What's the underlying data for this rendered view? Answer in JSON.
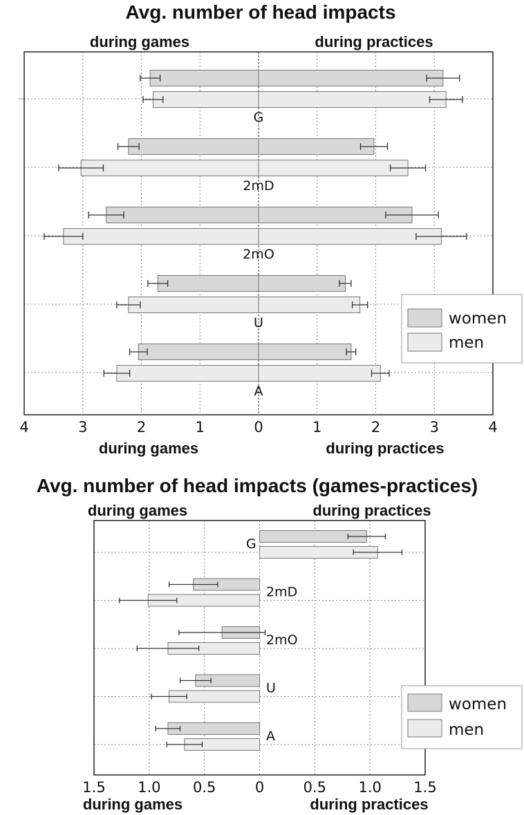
{
  "chart_data": [
    {
      "type": "bar",
      "orientation": "horizontal-butterfly",
      "title": "Avg. number of head impacts",
      "left_side_label": "during games",
      "right_side_label": "during practices",
      "categories": [
        "G",
        "2mD",
        "2mO",
        "U",
        "A"
      ],
      "xlim": [
        -4,
        4
      ],
      "x_tick_labels": [
        "4",
        "3",
        "2",
        "1",
        "0",
        "1",
        "2",
        "3",
        "4"
      ],
      "grid": true,
      "legend_position": "right",
      "series": [
        {
          "name": "women",
          "color": "#d8d8d8",
          "games": [
            1.85,
            2.22,
            2.6,
            1.72,
            2.05
          ],
          "games_err": [
            0.17,
            0.18,
            0.3,
            0.17,
            0.15
          ],
          "practices": [
            3.15,
            1.97,
            2.62,
            1.48,
            1.58
          ],
          "practices_err": [
            0.28,
            0.23,
            0.45,
            0.1,
            0.08
          ]
        },
        {
          "name": "men",
          "color": "#ececec",
          "games": [
            1.8,
            3.03,
            3.33,
            2.22,
            2.42
          ],
          "games_err": [
            0.17,
            0.38,
            0.33,
            0.2,
            0.22
          ],
          "practices": [
            3.2,
            2.55,
            3.12,
            1.73,
            2.08
          ],
          "practices_err": [
            0.28,
            0.3,
            0.43,
            0.13,
            0.15
          ]
        }
      ]
    },
    {
      "type": "bar",
      "orientation": "horizontal",
      "title": "Avg. number of head impacts (games-practices)",
      "left_side_label": "during games",
      "right_side_label": "during practices",
      "categories": [
        "G",
        "2mD",
        "2mO",
        "U",
        "A"
      ],
      "xlim": [
        -1.5,
        1.5
      ],
      "x_tick_labels": [
        "1.5",
        "1.0",
        "0.5",
        "0",
        "0.5",
        "1.0",
        "1.5"
      ],
      "grid": true,
      "legend_position": "right",
      "series": [
        {
          "name": "women",
          "color": "#d8d8d8",
          "values": [
            0.97,
            -0.6,
            -0.34,
            -0.58,
            -0.83
          ],
          "err": [
            0.17,
            0.22,
            0.39,
            0.14,
            0.11
          ]
        },
        {
          "name": "men",
          "color": "#ececec",
          "values": [
            1.07,
            -1.01,
            -0.83,
            -0.82,
            -0.68
          ],
          "err": [
            0.22,
            0.26,
            0.28,
            0.16,
            0.16
          ]
        }
      ]
    }
  ]
}
